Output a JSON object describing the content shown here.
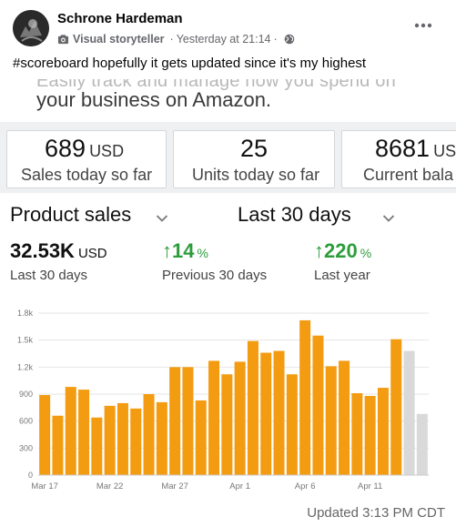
{
  "post": {
    "author": "Schrone Hardeman",
    "role": "Visual storyteller",
    "timestamp": "Yesterday at 21:14",
    "separator": "·",
    "audience_icon": "globe-icon",
    "more_icon": "more-options-icon",
    "hashtag": "#scoreboard",
    "text": " hopefully it gets updated since it's my highest"
  },
  "screenshot": {
    "cut_text": "Easily track and manage how you spend on",
    "headline": "your business on Amazon.",
    "stats": [
      {
        "value": "689",
        "unit": "USD",
        "label": "Sales today so far"
      },
      {
        "value": "25",
        "unit": "",
        "label": "Units today so far"
      },
      {
        "value": "8681",
        "unit": "US",
        "label": "Current bala"
      }
    ],
    "filters": {
      "metric": "Product sales",
      "range": "Last 30 days"
    },
    "kpis": [
      {
        "value": "32.53K",
        "unit": "USD",
        "label": "Last 30 days",
        "arrow": ""
      },
      {
        "value": "14",
        "unit": "%",
        "label": "Previous 30 days",
        "arrow": "↑"
      },
      {
        "value": "220",
        "unit": "%",
        "label": "Last year",
        "arrow": "↑"
      }
    ],
    "updated": "Updated 3:13 PM CDT",
    "colors": {
      "bar": "#f39c12",
      "bar_pending": "#d9d9d9",
      "up": "#2d9d3c",
      "grid": "#e6e6e6"
    }
  },
  "chart_data": {
    "type": "bar",
    "title": "",
    "xlabel": "",
    "ylabel": "",
    "ylim": [
      0,
      1800
    ],
    "y_ticks": [
      0,
      300,
      600,
      900,
      1200,
      1500,
      1800
    ],
    "y_tick_labels": [
      "0",
      "300",
      "600",
      "900",
      "1.2k",
      "1.5k",
      "1.8k"
    ],
    "x_tick_labels": [
      "Mar 17",
      "Mar 22",
      "Mar 27",
      "Apr 1",
      "Apr 6",
      "Apr 11"
    ],
    "x_tick_indices": [
      0,
      5,
      10,
      15,
      20,
      25
    ],
    "grid": true,
    "values": [
      890,
      660,
      980,
      950,
      640,
      770,
      800,
      740,
      900,
      810,
      1200,
      1200,
      830,
      1270,
      1120,
      1260,
      1490,
      1360,
      1380,
      1120,
      1720,
      1550,
      1210,
      1270,
      910,
      880,
      970,
      1510,
      1380,
      680
    ],
    "pending_from_index": 28
  }
}
